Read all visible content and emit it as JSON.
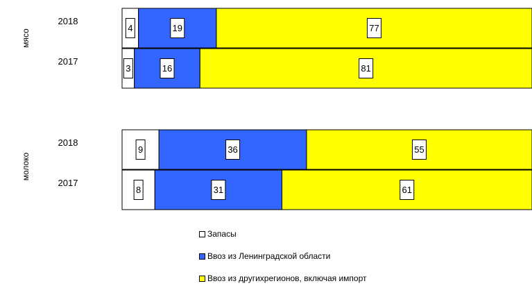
{
  "chart_data": {
    "type": "bar",
    "orientation": "horizontal",
    "stacked": "percent",
    "groups": [
      {
        "label": "мясо",
        "categories": [
          "2018",
          "2017"
        ],
        "series_values": {
          "Запасы": [
            4,
            3
          ],
          "Ввоз из Ленинградской области": [
            19,
            16
          ],
          "Ввоз из другихрегионов, включая импорт": [
            77,
            81
          ]
        }
      },
      {
        "label": "молоко",
        "categories": [
          "2018",
          "2017"
        ],
        "series_values": {
          "Запасы": [
            9,
            8
          ],
          "Ввоз из Ленинградской области": [
            36,
            31
          ],
          "Ввоз из другихрегионов, включая импорт": [
            55,
            61
          ]
        }
      }
    ],
    "series": [
      {
        "name": "Запасы",
        "color": "#ffffff"
      },
      {
        "name": "Ввоз из Ленинградской области",
        "color": "#3366ff"
      },
      {
        "name": "Ввоз из другихрегионов, включая импорт",
        "color": "#ffff00"
      }
    ],
    "xlim": [
      0,
      100
    ],
    "grid": false,
    "legend_position": "bottom"
  }
}
